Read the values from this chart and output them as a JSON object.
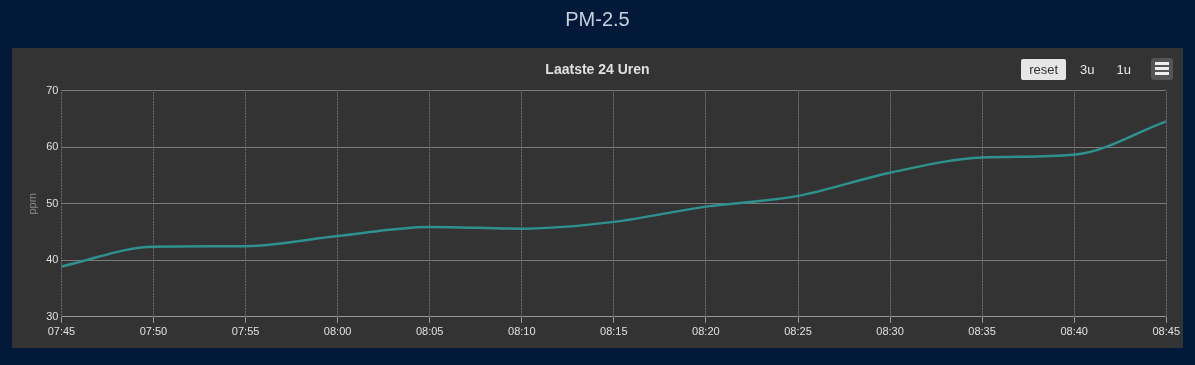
{
  "chart_data": {
    "type": "line",
    "title": "PM-2.5",
    "subtitle": "Laatste 24 Uren",
    "ylabel": "ppm",
    "x": [
      7.75,
      7.8333,
      7.9167,
      8,
      8.0833,
      8.1667,
      8.25,
      8.3333,
      8.4167,
      8.5,
      8.5833,
      8.6667,
      8.75
    ],
    "series": [
      {
        "color": "#2e918d",
        "values": [
          38.9,
          42.4,
          42.5,
          44.3,
          45.9,
          45.6,
          46.8,
          49.5,
          51.4,
          55.5,
          58.2,
          58.7,
          64.6
        ]
      }
    ],
    "xlim": [
      7.75,
      8.75
    ],
    "xticks": [
      {
        "value": 7.75,
        "label": "07:45"
      },
      {
        "value": 7.8333,
        "label": "07:50"
      },
      {
        "value": 7.9167,
        "label": "07:55"
      },
      {
        "value": 8,
        "label": "08:00"
      },
      {
        "value": 8.0833,
        "label": "08:05"
      },
      {
        "value": 8.1667,
        "label": "08:10"
      },
      {
        "value": 8.25,
        "label": "08:15"
      },
      {
        "value": 8.3333,
        "label": "08:20"
      },
      {
        "value": 8.4167,
        "label": "08:25"
      },
      {
        "value": 8.5,
        "label": "08:30"
      },
      {
        "value": 8.5833,
        "label": "08:35"
      },
      {
        "value": 8.6667,
        "label": "08:40"
      },
      {
        "value": 8.75,
        "label": "08:45"
      }
    ],
    "ylim": [
      30,
      70
    ],
    "yticks": [
      30,
      40,
      50,
      60,
      70
    ],
    "grid": true,
    "legend": false,
    "marker": "none",
    "line_style": "solid",
    "annotations": [
      "reset",
      "3u",
      "1u"
    ]
  }
}
